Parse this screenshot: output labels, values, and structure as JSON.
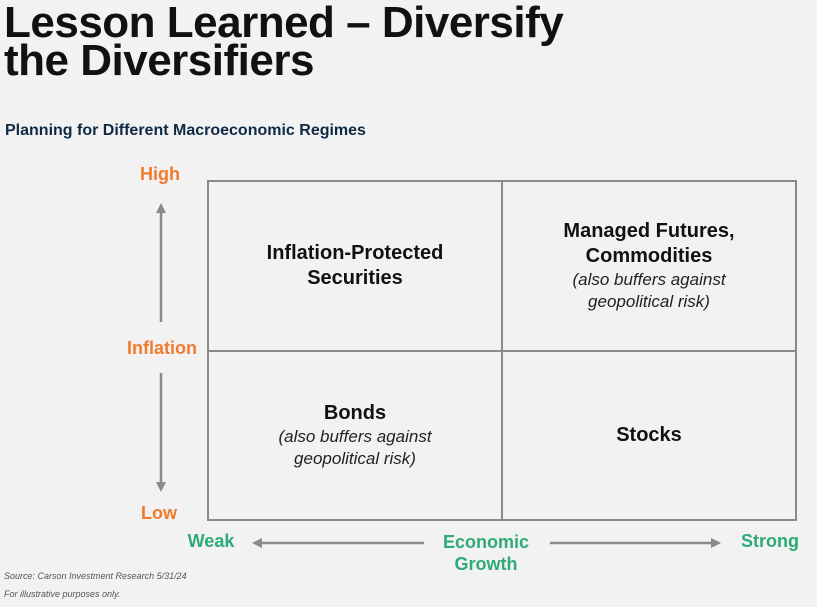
{
  "title": {
    "line1": "Lesson Learned – Diversify",
    "line2": "the Diversifiers"
  },
  "subtitle": "Planning for Different Macroeconomic Regimes",
  "y_axis": {
    "high": "High",
    "label": "Inflation",
    "low": "Low"
  },
  "x_axis": {
    "weak": "Weak",
    "label_line1": "Economic",
    "label_line2": "Growth",
    "strong": "Strong"
  },
  "quadrants": {
    "top_left": {
      "main_line1": "Inflation-Protected",
      "main_line2": "Securities"
    },
    "top_right": {
      "main_line1": "Managed Futures,",
      "main_line2": "Commodities",
      "note_line1": "(also buffers against",
      "note_line2": "geopolitical risk)"
    },
    "bottom_left": {
      "main_line1": "Bonds",
      "note_line1": "(also buffers against",
      "note_line2": "geopolitical risk)"
    },
    "bottom_right": {
      "main_line1": "Stocks"
    }
  },
  "footer": {
    "source": "Source: Carson Investment Research 5/31/24",
    "disclaimer": "For illustrative purposes only."
  },
  "colors": {
    "accent_orange": "#f07b2e",
    "accent_green": "#2eaa78",
    "grid_gray": "#8a8a8a",
    "background": "#f2f2f2"
  }
}
